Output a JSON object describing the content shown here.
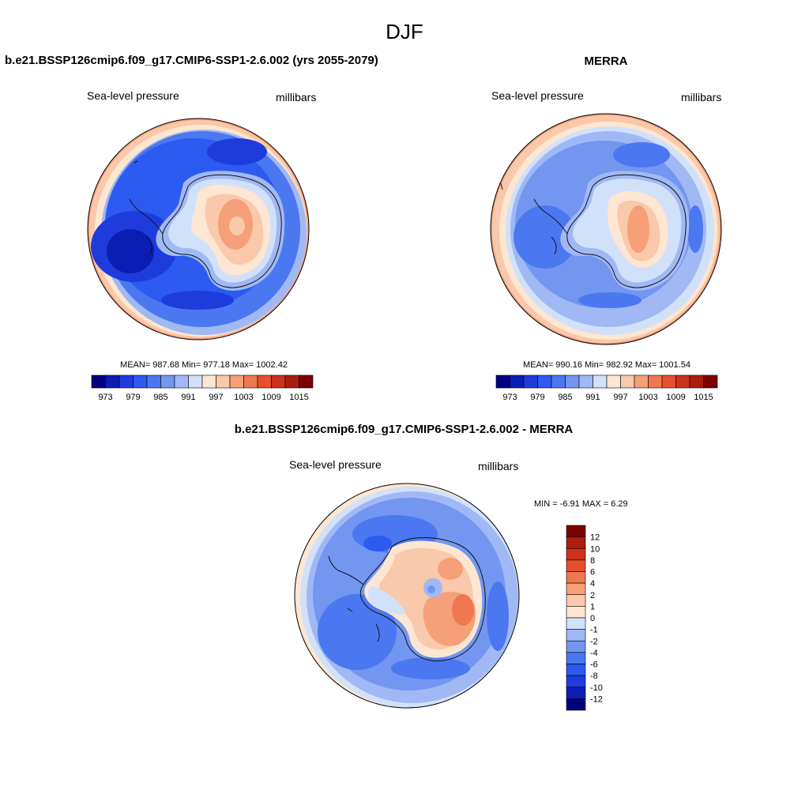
{
  "page": {
    "title": "DJF"
  },
  "panels": [
    {
      "id": "model",
      "title": "b.e21.BSSP126cmip6.f09_g17.CMIP6-SSP1-2.6.002 (yrs 2055-2079)",
      "left_label": "Sea-level pressure",
      "right_label": "millibars",
      "stats_text": "MEAN= 987.68  Min= 977.18  Max= 1002.42"
    },
    {
      "id": "obs",
      "title": "MERRA",
      "left_label": "Sea-level pressure",
      "right_label": "millibars",
      "stats_text": "MEAN= 990.16  Min= 982.92  Max= 1001.54"
    },
    {
      "id": "diff",
      "title": "b.e21.BSSP126cmip6.f09_g17.CMIP6-SSP1-2.6.002 - MERRA",
      "left_label": "Sea-level pressure",
      "right_label": "millibars",
      "stats_text": "MIN =  -6.91 MAX =   6.29"
    }
  ],
  "chart_data": [
    {
      "type": "heatmap",
      "projection": "south-polar-stereographic",
      "variable": "Sea-level pressure",
      "units": "millibars",
      "title": "b.e21.BSSP126cmip6.f09_g17.CMIP6-SSP1-2.6.002 (yrs 2055-2079)",
      "stats": {
        "mean": 987.68,
        "min": 977.18,
        "max": 1002.42
      },
      "colorbar": {
        "orientation": "horizontal",
        "levels": [
          973,
          976,
          979,
          982,
          985,
          988,
          991,
          994,
          997,
          1000,
          1003,
          1006,
          1009,
          1012,
          1015
        ],
        "tick_labels": [
          "973",
          "979",
          "985",
          "991",
          "997",
          "1003",
          "1009",
          "1015"
        ],
        "colors": [
          "#000080",
          "#0a1eb4",
          "#1e3cdc",
          "#2d5af0",
          "#4b78f0",
          "#7396f0",
          "#a0b9f5",
          "#d2e1fa",
          "#fde6d2",
          "#fac8aa",
          "#f5a078",
          "#f07850",
          "#e6502d",
          "#cd321e",
          "#aa1e0f",
          "#7d0000"
        ]
      }
    },
    {
      "type": "heatmap",
      "projection": "south-polar-stereographic",
      "variable": "Sea-level pressure",
      "units": "millibars",
      "title": "MERRA",
      "stats": {
        "mean": 990.16,
        "min": 982.92,
        "max": 1001.54
      },
      "colorbar": {
        "orientation": "horizontal",
        "levels": [
          973,
          976,
          979,
          982,
          985,
          988,
          991,
          994,
          997,
          1000,
          1003,
          1006,
          1009,
          1012,
          1015
        ],
        "tick_labels": [
          "973",
          "979",
          "985",
          "991",
          "997",
          "1003",
          "1009",
          "1015"
        ],
        "colors": [
          "#000080",
          "#0a1eb4",
          "#1e3cdc",
          "#2d5af0",
          "#4b78f0",
          "#7396f0",
          "#a0b9f5",
          "#d2e1fa",
          "#fde6d2",
          "#fac8aa",
          "#f5a078",
          "#f07850",
          "#e6502d",
          "#cd321e",
          "#aa1e0f",
          "#7d0000"
        ]
      }
    },
    {
      "type": "heatmap",
      "projection": "south-polar-stereographic",
      "variable": "Sea-level pressure",
      "units": "millibars",
      "title": "b.e21.BSSP126cmip6.f09_g17.CMIP6-SSP1-2.6.002 - MERRA",
      "stats": {
        "min": -6.91,
        "max": 6.29
      },
      "colorbar": {
        "orientation": "vertical",
        "levels": [
          12,
          10,
          8,
          6,
          4,
          2,
          1,
          0,
          -1,
          -2,
          -4,
          -6,
          -8,
          -10,
          -12
        ],
        "tick_labels": [
          "12",
          "10",
          "8",
          "6",
          "4",
          "2",
          "1",
          "0",
          "-1",
          "-2",
          "-4",
          "-6",
          "-8",
          "-10",
          "-12"
        ],
        "colors": [
          "#7d0000",
          "#aa1e0f",
          "#cd321e",
          "#e6502d",
          "#f07850",
          "#f5a078",
          "#fac8aa",
          "#fde6d2",
          "#d2e1fa",
          "#a0b9f5",
          "#7396f0",
          "#4b78f0",
          "#2d5af0",
          "#1e3cdc",
          "#0a1eb4",
          "#000080"
        ]
      }
    }
  ]
}
